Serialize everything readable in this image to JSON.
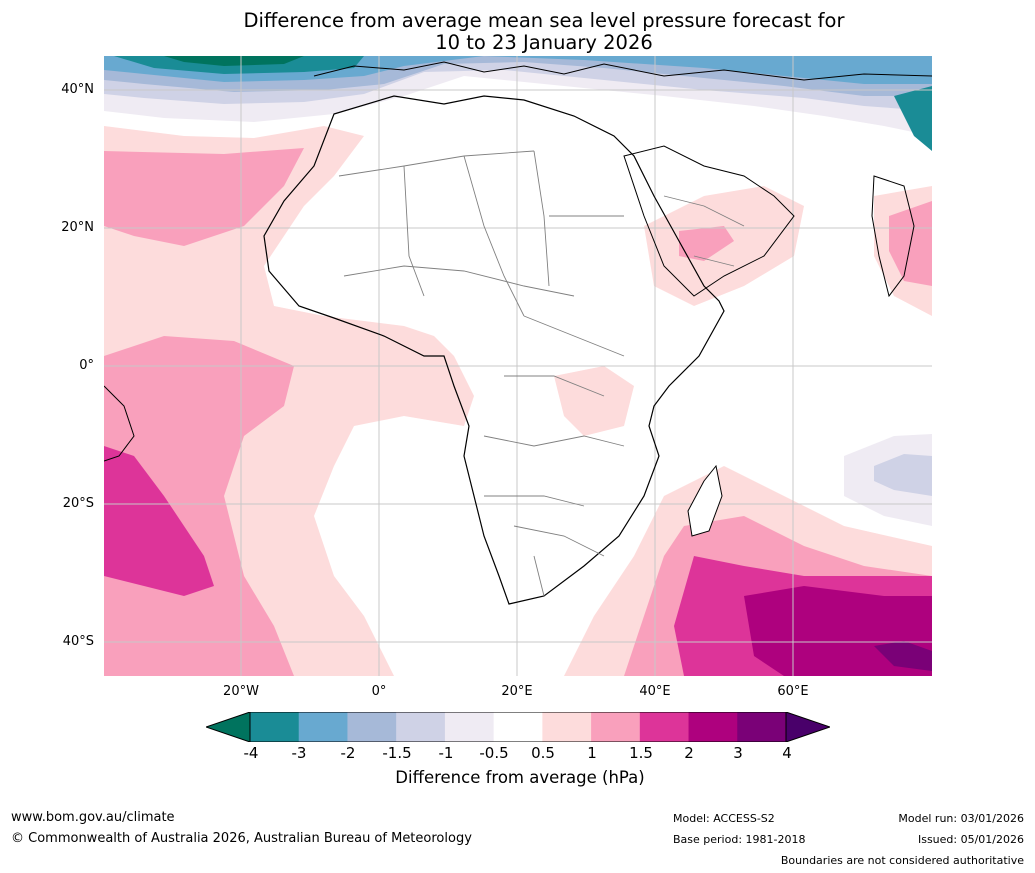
{
  "title": {
    "line1": "Difference from average mean sea level pressure forecast for",
    "line2": "10 to 23 January 2026"
  },
  "map": {
    "lat_labels": [
      "40°N",
      "20°N",
      "0°",
      "20°S",
      "40°S"
    ],
    "lon_labels": [
      "20°W",
      "0°",
      "20°E",
      "40°E",
      "60°E"
    ]
  },
  "colorbar": {
    "ticks": [
      "-4",
      "-3",
      "-2",
      "-1.5",
      "-1",
      "-0.5",
      "0.5",
      "1",
      "1.5",
      "2",
      "3",
      "4"
    ],
    "colors": [
      "#00735e",
      "#1a8c96",
      "#68a9d0",
      "#a6b9d8",
      "#cfd2e6",
      "#efebf3",
      "#ffffff",
      "#fddcdc",
      "#f9a0bc",
      "#dd3499",
      "#ae017e",
      "#7a0177",
      "#49006a"
    ],
    "label": "Difference from average (hPa)"
  },
  "footer": {
    "website": "www.bom.gov.au/climate",
    "copyright": "© Commonwealth of Australia 2026, Australian Bureau of Meteorology",
    "model": "Model: ACCESS-S2",
    "base_period": "Base period: 1981-2018",
    "model_run": "Model run: 03/01/2026",
    "issued": "Issued: 05/01/2026",
    "disclaimer": "Boundaries are not considered authoritative"
  }
}
